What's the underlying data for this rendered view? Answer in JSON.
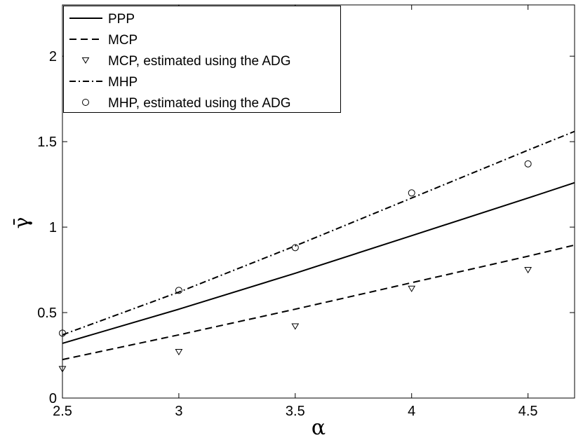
{
  "chart_data": {
    "type": "line",
    "xlabel": "α",
    "ylabel": "γ̄",
    "xlim": [
      2.5,
      4.7
    ],
    "ylim": [
      0,
      2.3
    ],
    "xticks": [
      "2.5",
      "3",
      "3.5",
      "4",
      "4.5"
    ],
    "yticks": [
      "0",
      "0.5",
      "1",
      "1.5",
      "2"
    ],
    "grid": false,
    "legend_position": "top-left",
    "series": [
      {
        "name": "PPP",
        "style": "solid",
        "marker": "none",
        "x": [
          2.5,
          3.0,
          3.5,
          4.0,
          4.5,
          4.7
        ],
        "y": [
          0.32,
          0.52,
          0.73,
          0.95,
          1.17,
          1.26
        ]
      },
      {
        "name": "MCP",
        "style": "dashed",
        "marker": "none",
        "x": [
          2.5,
          3.0,
          3.5,
          4.0,
          4.5,
          4.7
        ],
        "y": [
          0.225,
          0.37,
          0.52,
          0.675,
          0.83,
          0.895
        ]
      },
      {
        "name": "MCP, estimated using the ADG",
        "style": "none",
        "marker": "triangle-down",
        "x": [
          2.5,
          3.0,
          3.5,
          4.0,
          4.5
        ],
        "y": [
          0.17,
          0.27,
          0.42,
          0.64,
          0.75
        ]
      },
      {
        "name": "MHP",
        "style": "dashdot",
        "marker": "none",
        "x": [
          2.5,
          3.0,
          3.5,
          4.0,
          4.5,
          4.7
        ],
        "y": [
          0.37,
          0.62,
          0.89,
          1.17,
          1.45,
          1.56
        ]
      },
      {
        "name": "MHP, estimated using the ADG",
        "style": "none",
        "marker": "circle",
        "x": [
          2.5,
          3.0,
          3.5,
          4.0,
          4.5
        ],
        "y": [
          0.38,
          0.63,
          0.88,
          1.2,
          1.37
        ]
      }
    ]
  }
}
